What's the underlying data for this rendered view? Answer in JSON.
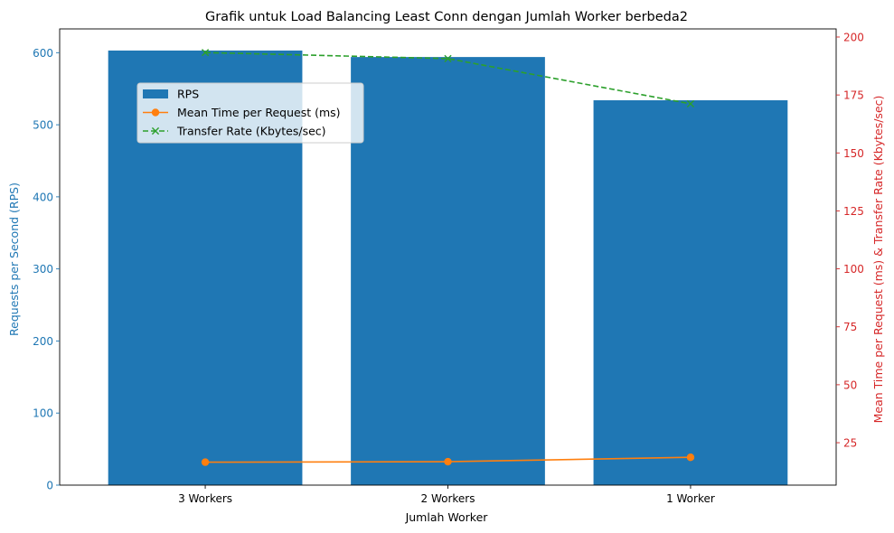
{
  "chart_data": {
    "type": "bar",
    "title": "Grafik untuk Load Balancing Least Conn dengan Jumlah Worker berbeda2",
    "xlabel": "Jumlah Worker",
    "ylabel_left": "Requests per Second (RPS)",
    "ylabel_right": "Mean Time per Request (ms) & Transfer Rate (Kbytes/sec)",
    "categories": [
      "3 Workers",
      "2 Workers",
      "1 Worker"
    ],
    "ylim_left": [
      0,
      633
    ],
    "ylim_right": [
      6.7,
      203.5
    ],
    "yticks_left": [
      0,
      100,
      200,
      300,
      400,
      500,
      600
    ],
    "yticks_right": [
      25,
      50,
      75,
      100,
      125,
      150,
      175,
      200
    ],
    "legend_position": "upper-left",
    "bars": {
      "name": "RPS",
      "axis": "left",
      "color": "#1f77b4",
      "values": [
        603,
        594,
        534
      ]
    },
    "series": [
      {
        "name": "Mean Time per Request (ms)",
        "axis": "right",
        "color": "#ff7f0e",
        "marker": "circle",
        "dash": "solid",
        "values": [
          16.6,
          16.8,
          18.7
        ]
      },
      {
        "name": "Transfer Rate (Kbytes/sec)",
        "axis": "right",
        "color": "#2ca02c",
        "marker": "x",
        "dash": "dashed",
        "values": [
          193.3,
          190.7,
          171.2
        ]
      }
    ],
    "colors": {
      "left_axis": "#1f77b4",
      "right_axis": "#d62728"
    }
  }
}
